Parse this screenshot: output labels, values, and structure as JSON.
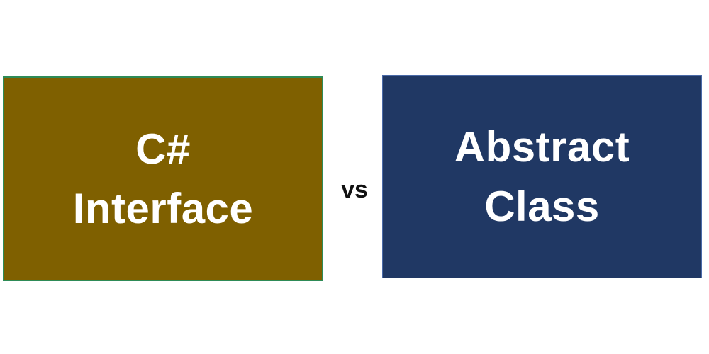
{
  "left_box": {
    "line1": "C#",
    "line2": "Interface",
    "fill_color": "#7f6000",
    "border_color": "#2e8b57",
    "text_color": "#ffffff"
  },
  "separator": {
    "label": "vs"
  },
  "right_box": {
    "line1": "Abstract",
    "line2": "Class",
    "fill_color": "#203864",
    "text_color": "#ffffff"
  }
}
